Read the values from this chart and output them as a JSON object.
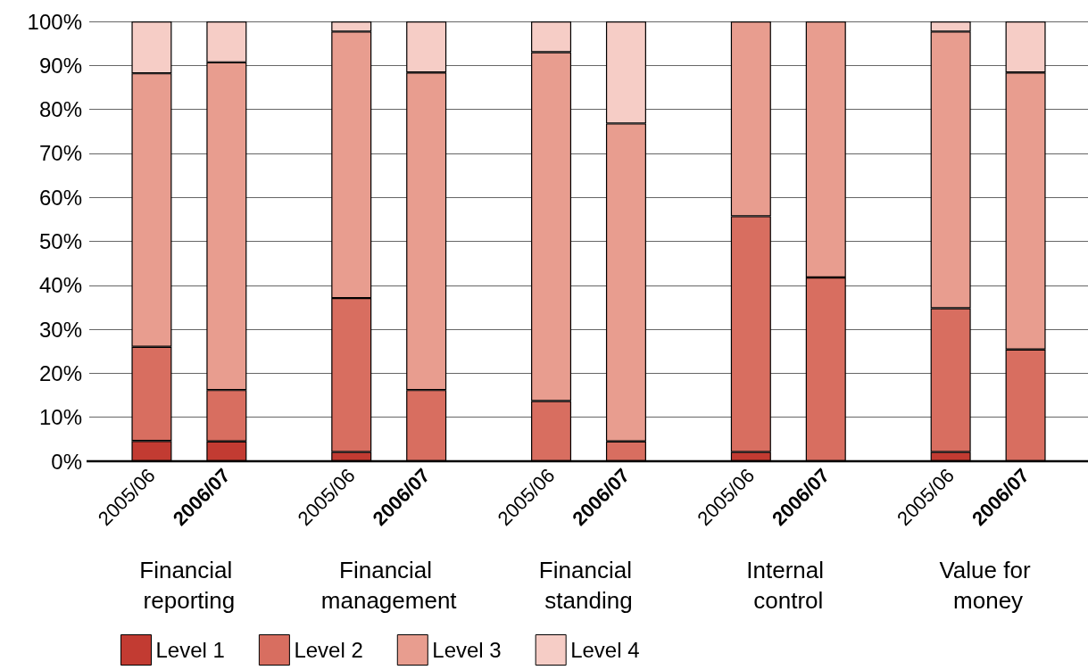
{
  "chart_data": {
    "type": "bar",
    "stacked": true,
    "categories": [
      "2005/06",
      "2006/07",
      "2005/06",
      "2006/07",
      "2005/06",
      "2006/07",
      "2005/06",
      "2006/07",
      "2005/06",
      "2006/07"
    ],
    "annotations": [
      "Financial reporting",
      "Financial management",
      "Financial standing",
      "Internal control",
      "Value for money"
    ],
    "series": [
      {
        "name": "Level 1",
        "color": "#c23b32",
        "values": [
          4.6,
          4.5,
          2.1,
          0,
          0,
          0,
          2.1,
          0,
          2.1,
          0
        ]
      },
      {
        "name": "Level 2",
        "color": "#d86e60",
        "values": [
          21.4,
          11.7,
          35.0,
          16.2,
          13.7,
          4.5,
          53.6,
          41.8,
          32.7,
          25.4
        ]
      },
      {
        "name": "Level 3",
        "color": "#e89d8f",
        "values": [
          62.2,
          74.5,
          60.6,
          72.2,
          79.3,
          72.3,
          44.3,
          58.2,
          62.9,
          63.0
        ]
      },
      {
        "name": "Level 4",
        "color": "#f6cdc6",
        "values": [
          11.8,
          9.3,
          2.3,
          11.6,
          7.0,
          23.2,
          0,
          0,
          2.3,
          11.6
        ]
      }
    ],
    "ylim": [
      0,
      100
    ],
    "yticks": [
      {
        "value": 0,
        "label": "0%"
      },
      {
        "value": 10,
        "label": "10%"
      },
      {
        "value": 20,
        "label": "20%"
      },
      {
        "value": 30,
        "label": "30%"
      },
      {
        "value": 40,
        "label": "40%"
      },
      {
        "value": 50,
        "label": "50%"
      },
      {
        "value": 60,
        "label": "60%"
      },
      {
        "value": 70,
        "label": "70%"
      },
      {
        "value": 80,
        "label": "80%"
      },
      {
        "value": 90,
        "label": "90%"
      },
      {
        "value": 100,
        "label": "100%"
      }
    ],
    "grid": "y",
    "legend": "bottom"
  }
}
